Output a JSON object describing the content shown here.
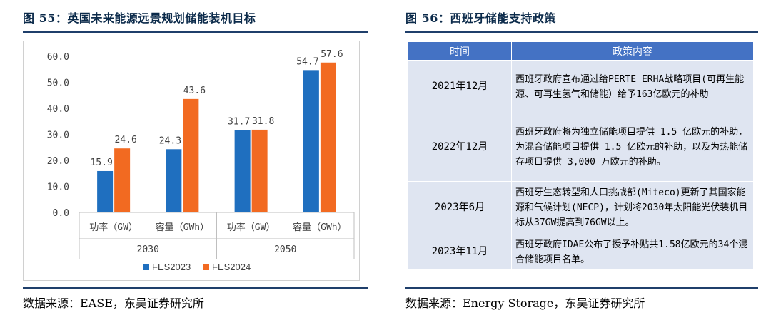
{
  "left": {
    "figure_title": "图 55：英国未来能源远景规划储能装机目标",
    "source": "数据来源：EASE，东吴证券研究所"
  },
  "right": {
    "figure_title": "图 56：西班牙储能支持政策",
    "source": "数据来源：Energy Storage，东吴证券研究所",
    "table": {
      "headers": [
        "时间",
        "政策内容"
      ],
      "rows": [
        {
          "time": "2021年12月",
          "content": "西班牙政府宣布通过给PERTE ERHA战略项目(可再生能源、可再生氢气和储能）给予163亿欧元的补助"
        },
        {
          "time": "2022年12月",
          "content": "西班牙政府将为独立储能项目提供 1.5 亿欧元的补助，为混合储能项目提供 1.5 亿欧元的补助，以及为热能储存项目提供 3,000 万欧元的补助。"
        },
        {
          "time": "2023年6月",
          "content": "西班牙生态转型和人口挑战部(Miteco)更新了其国家能源和气候计划(NECP)，计划将2030年太阳能光伏装机目标从37GW提高到76GW以上。"
        },
        {
          "time": "2023年11月",
          "content": "西班牙政府IDAE公布了授予补贴共1.58亿欧元的34个混合储能项目名单。"
        }
      ]
    }
  },
  "chart_data": {
    "type": "bar",
    "categories": [
      "功率（GW）",
      "容量（GWh）",
      "功率（GW）",
      "容量（GWh）"
    ],
    "groups": [
      "2030",
      "2050"
    ],
    "series": [
      {
        "name": "FES2023",
        "color": "#1f6fbf",
        "values": [
          15.9,
          24.3,
          31.7,
          54.7
        ]
      },
      {
        "name": "FES2024",
        "color": "#f26a21",
        "values": [
          24.6,
          43.6,
          31.8,
          57.6
        ]
      }
    ],
    "value_labels": [
      [
        "15.9",
        "24.3",
        "31.7",
        "54.7"
      ],
      [
        "24.6",
        "43.6",
        "31.8",
        "57.6"
      ]
    ],
    "yticks": [
      "0.0",
      "10.0",
      "20.0",
      "30.0",
      "40.0",
      "50.0",
      "60.0"
    ],
    "ylim": [
      0,
      60
    ],
    "legend_position": "bottom",
    "grid": false
  }
}
